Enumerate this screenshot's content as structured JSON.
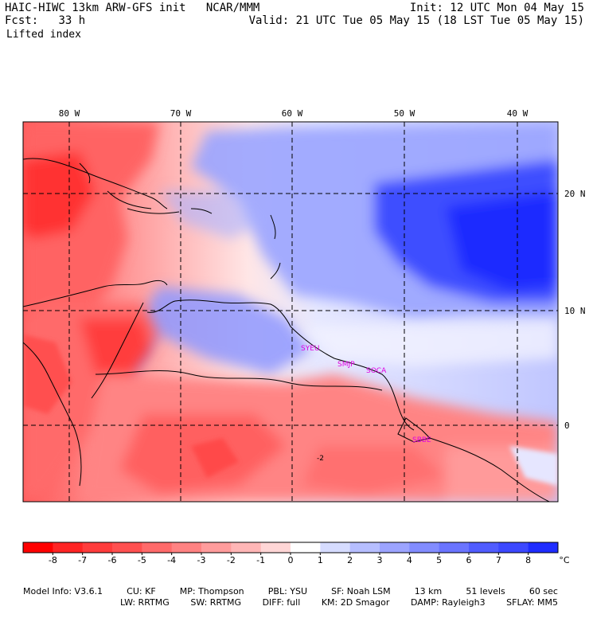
{
  "header": {
    "model_title": "HAIC-HIWC 13km ARW-GFS init",
    "org": "NCAR/MMM",
    "init": "Init: 12 UTC Mon 04 May 15",
    "fcst_label": "Fcst:",
    "fcst_value": "33 h",
    "valid": "Valid: 21 UTC Tue 05 May 15 (18 LST Tue 05 May 15)",
    "field": "Lifted index"
  },
  "map": {
    "longitude_labels": [
      "80 W",
      "70 W",
      "60 W",
      "50 W",
      "40 W"
    ],
    "latitude_labels": [
      "20 N",
      "10 N",
      "0"
    ],
    "city_labels": [
      "SYEU",
      "SMJP",
      "SOCA",
      "SBBE"
    ],
    "contour_label": "-2"
  },
  "colorbar": {
    "unit": "°C",
    "ticks": [
      "-8",
      "-7",
      "-6",
      "-5",
      "-4",
      "-3",
      "-2",
      "-1",
      "0",
      "1",
      "2",
      "3",
      "4",
      "5",
      "6",
      "7",
      "8"
    ],
    "colors": [
      "#ff0000",
      "#ff2424",
      "#ff3c3c",
      "#ff5050",
      "#ff6a6a",
      "#ff8282",
      "#ff9c9c",
      "#ffb6b6",
      "#ffd6d6",
      "#ffffff",
      "#d6dcff",
      "#b6beff",
      "#9ca4ff",
      "#828cff",
      "#6a74ff",
      "#505cff",
      "#3c48ff",
      "#1e2cff"
    ]
  },
  "footer": {
    "line1": [
      "Model Info: V3.6.1",
      "CU: KF",
      "MP: Thompson",
      "PBL: YSU",
      "SF: Noah LSM",
      "13 km",
      "51 levels",
      "60 sec"
    ],
    "line2": [
      "LW: RRTMG",
      "SW: RRTMG",
      "DIFF: full",
      "KM: 2D Smagor",
      "DAMP: Rayleigh3",
      "SFLAY: MM5"
    ]
  }
}
